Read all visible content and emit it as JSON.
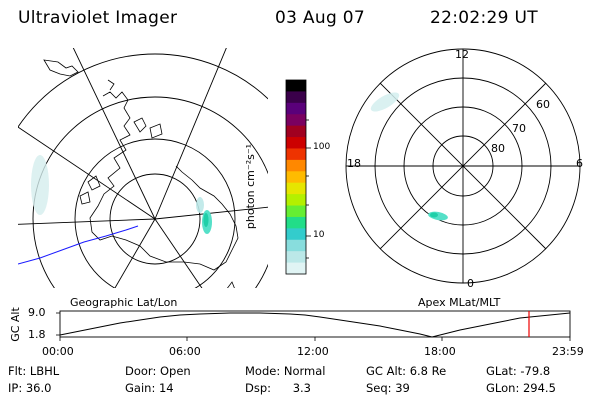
{
  "header": {
    "title": "Ultraviolet Imager",
    "date": "03 Aug 07",
    "time": "22:02:29 UT"
  },
  "colorbar": {
    "label": "photon cm⁻²s⁻¹",
    "tick_labels": [
      "100",
      "10"
    ],
    "colors": [
      "#000000",
      "#3a004a",
      "#5a007a",
      "#7a0060",
      "#a00020",
      "#cc0000",
      "#ee3300",
      "#ff8800",
      "#ffbb00",
      "#e6e600",
      "#b4f000",
      "#66ee33",
      "#22dd88",
      "#33cccc",
      "#88dddd",
      "#bbe8e8",
      "#e0f4f4"
    ]
  },
  "left_map": {
    "caption": "Geographic Lat/Lon"
  },
  "right_map": {
    "caption": "Apex MLat/MLT",
    "mlt_labels": {
      "top": "12",
      "bottom": "0",
      "left": "18",
      "right": "6"
    },
    "mlat_labels": [
      "60",
      "70",
      "80"
    ]
  },
  "altitude_plot": {
    "axis_label": "GC Alt",
    "y_ticks": [
      "9.0",
      "1.8"
    ],
    "x_ticks": [
      "00:00",
      "06:00",
      "12:00",
      "18:00",
      "23:59"
    ],
    "current_time_marker": "22:02"
  },
  "status": {
    "row1": {
      "flt_label": "Flt:",
      "flt_value": "LBHL",
      "door_label": "Door:",
      "door_value": "Open",
      "mode_label": "Mode:",
      "mode_value": "Normal",
      "gcalt_label": "GC Alt:",
      "gcalt_value": "6.8 Re",
      "glat_label": "GLat:",
      "glat_value": "-79.8"
    },
    "row2": {
      "ip_label": "IP:",
      "ip_value": "36.0",
      "gain_label": "Gain:",
      "gain_value": "14",
      "dsp_label": "Dsp:",
      "dsp_value": "3.3",
      "seq_label": "Seq:",
      "seq_value": "39",
      "glon_label": "GLon:",
      "glon_value": "294.5"
    }
  }
}
